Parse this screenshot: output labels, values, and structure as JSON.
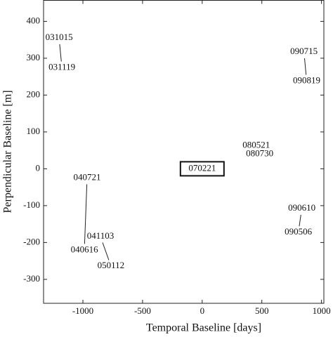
{
  "chart_data": {
    "type": "scatter",
    "xlabel": "Temporal Baseline [days]",
    "ylabel": "Perpendicular Baseline [m]",
    "labels": [
      "031015",
      "031119",
      "090715",
      "090819",
      "080521",
      "080730",
      "070221",
      "040721",
      "040616",
      "041103",
      "050112",
      "090610",
      "090506"
    ],
    "x": [
      -1200,
      -1176,
      853,
      876,
      453,
      482,
      0,
      -965,
      -988,
      -853,
      -765,
      835,
      806
    ],
    "y": [
      355,
      274,
      317,
      238,
      63,
      40,
      0,
      -25,
      -221,
      -184,
      -264,
      -108,
      -173
    ],
    "xlim": [
      -1330,
      1020
    ],
    "ylim": [
      -365,
      457
    ],
    "xticks": [
      -1000,
      -500,
      0,
      500,
      1000
    ],
    "yticks": [
      -300,
      -200,
      -100,
      0,
      100,
      200,
      300,
      400
    ]
  }
}
